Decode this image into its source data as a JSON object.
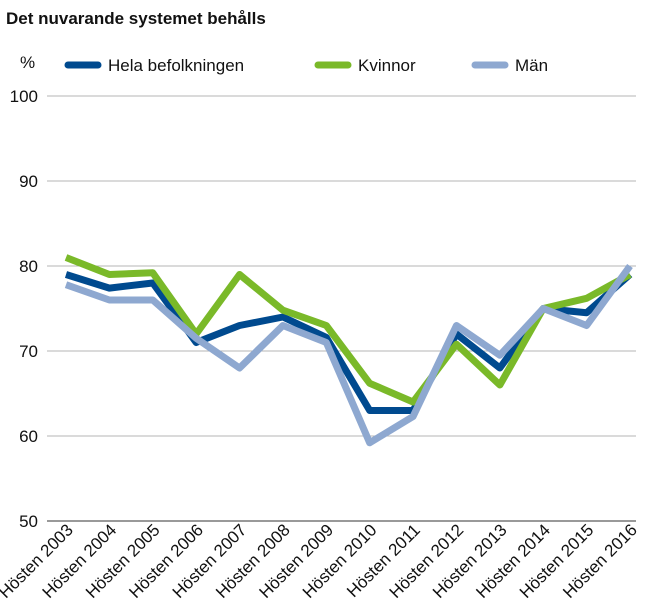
{
  "chart_data": {
    "type": "line",
    "title": "Det nuvarande systemet behålls",
    "ylabel": "%",
    "categories": [
      "Hösten 2003",
      "Hösten 2004",
      "Hösten 2005",
      "Hösten 2006",
      "Hösten 2007",
      "Hösten 2008",
      "Hösten 2009",
      "Hösten 2010",
      "Hösten 2011",
      "Hösten 2012",
      "Hösten 2013",
      "Hösten 2014",
      "Hösten 2015",
      "Hösten 2016"
    ],
    "series": [
      {
        "name": "Hela befolkningen",
        "color": "#004a8f",
        "values": [
          79,
          77.4,
          78,
          71,
          73,
          74,
          71.6,
          63,
          63,
          72,
          68,
          75,
          74.5,
          79
        ]
      },
      {
        "name": "Kvinnor",
        "color": "#7ab929",
        "values": [
          81,
          79,
          79.2,
          72,
          79,
          74.8,
          73,
          66.2,
          64,
          70.8,
          66,
          75,
          76.2,
          79
        ]
      },
      {
        "name": "Män",
        "color": "#8ea8d0",
        "values": [
          77.8,
          76,
          76,
          71.5,
          68,
          73,
          71,
          59.2,
          62.3,
          73,
          69.5,
          75,
          73,
          80
        ]
      }
    ],
    "ylim": [
      50,
      100
    ],
    "yticks": [
      50,
      60,
      70,
      80,
      90,
      100
    ],
    "grid": true
  }
}
